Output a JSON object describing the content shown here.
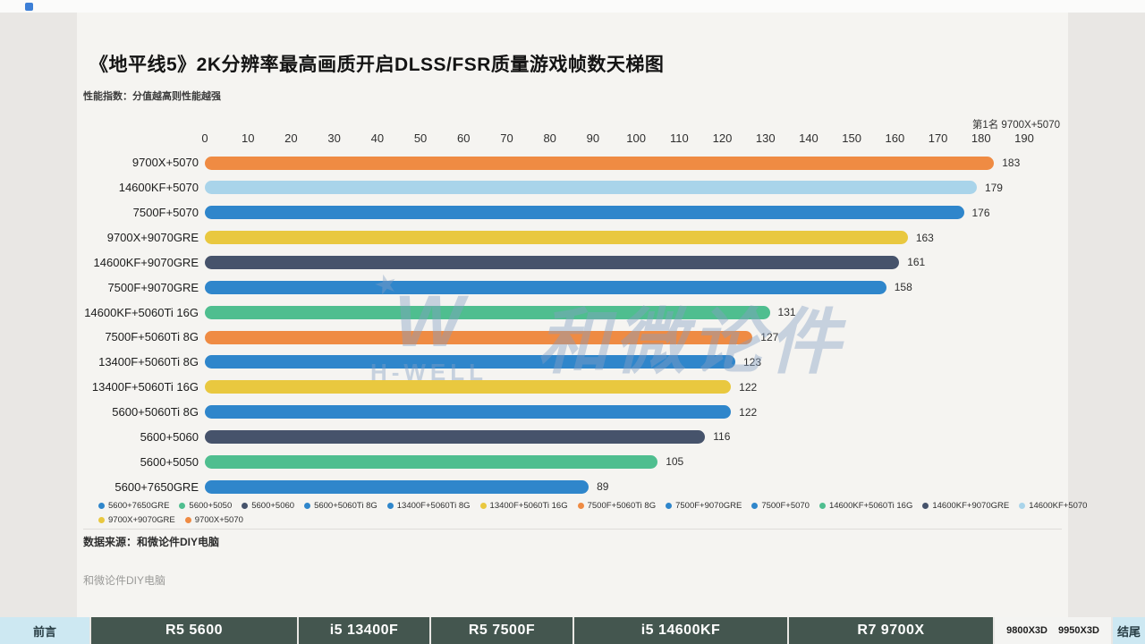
{
  "header": {
    "title": "《地平线5》2K分辨率最高画质开启DLSS/FSR质量游戏帧数天梯图",
    "subtitle": "性能指数：分值越高则性能越强",
    "rank_note": "第1名 9700X+5070"
  },
  "chart_data": {
    "type": "bar",
    "orientation": "horizontal",
    "title": "《地平线5》2K分辨率最高画质开启DLSS/FSR质量游戏帧数天梯图",
    "xlim": [
      0,
      190
    ],
    "x_ticks": [
      0,
      10,
      20,
      30,
      40,
      50,
      60,
      70,
      80,
      90,
      100,
      110,
      120,
      130,
      140,
      150,
      160,
      170,
      180,
      190
    ],
    "grid": false,
    "legend_position": "bottom",
    "bars": [
      {
        "label": "9700X+5070",
        "value": 183,
        "color": "#EF8B43"
      },
      {
        "label": "14600KF+5070",
        "value": 179,
        "color": "#A9D4EA"
      },
      {
        "label": "7500F+5070",
        "value": 176,
        "color": "#2F86CB"
      },
      {
        "label": "9700X+9070GRE",
        "value": 163,
        "color": "#E9C83F"
      },
      {
        "label": "14600KF+9070GRE",
        "value": 161,
        "color": "#46536B"
      },
      {
        "label": "7500F+9070GRE",
        "value": 158,
        "color": "#2F86CB"
      },
      {
        "label": "14600KF+5060Ti 16G",
        "value": 131,
        "color": "#4FBE8F"
      },
      {
        "label": "7500F+5060Ti 8G",
        "value": 127,
        "color": "#EF8B43"
      },
      {
        "label": "13400F+5060Ti 8G",
        "value": 123,
        "color": "#2F86CB"
      },
      {
        "label": "13400F+5060Ti 16G",
        "value": 122,
        "color": "#E9C83F"
      },
      {
        "label": "5600+5060Ti 8G",
        "value": 122,
        "color": "#2F86CB"
      },
      {
        "label": "5600+5060",
        "value": 116,
        "color": "#46536B"
      },
      {
        "label": "5600+5050",
        "value": 105,
        "color": "#4FBE8F"
      },
      {
        "label": "5600+7650GRE",
        "value": 89,
        "color": "#2F86CB"
      }
    ],
    "legend": [
      {
        "label": "5600+7650GRE",
        "color": "#2F86CB"
      },
      {
        "label": "5600+5050",
        "color": "#4FBE8F"
      },
      {
        "label": "5600+5060",
        "color": "#46536B"
      },
      {
        "label": "5600+5060Ti 8G",
        "color": "#2F86CB"
      },
      {
        "label": "13400F+5060Ti 8G",
        "color": "#2F86CB"
      },
      {
        "label": "13400F+5060Ti 16G",
        "color": "#E9C83F"
      },
      {
        "label": "7500F+5060Ti 8G",
        "color": "#EF8B43"
      },
      {
        "label": "7500F+9070GRE",
        "color": "#2F86CB"
      },
      {
        "label": "7500F+5070",
        "color": "#2F86CB"
      },
      {
        "label": "14600KF+5060Ti 16G",
        "color": "#4FBE8F"
      },
      {
        "label": "14600KF+9070GRE",
        "color": "#46536B"
      },
      {
        "label": "14600KF+5070",
        "color": "#A9D4EA"
      },
      {
        "label": "9700X+9070GRE",
        "color": "#E9C83F"
      },
      {
        "label": "9700X+5070",
        "color": "#EF8B43"
      }
    ]
  },
  "watermark": {
    "logo_letter": "W",
    "logo_text": "H-WELL",
    "brand_text": "和微论件"
  },
  "footer": {
    "source": "数据来源：和微论件DIY电脑",
    "note": "和微论件DIY电脑"
  },
  "bottom_nav": {
    "items": [
      {
        "label": "前言",
        "style": "light"
      },
      {
        "label": "R5 5600",
        "style": "dark"
      },
      {
        "label": "i5 13400F",
        "style": "dark"
      },
      {
        "label": "R5 7500F",
        "style": "dark"
      },
      {
        "label": "i5 14600KF",
        "style": "dark"
      },
      {
        "label": "R7 9700X",
        "style": "dark"
      },
      {
        "label": "9800X3D 9950X3D",
        "style": "white"
      },
      {
        "label": "结尾",
        "style": "light"
      }
    ]
  }
}
